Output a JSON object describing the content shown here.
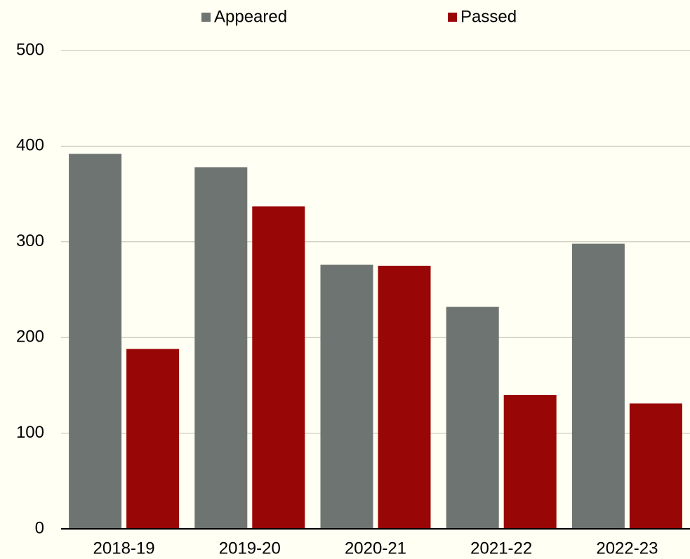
{
  "chart_data": {
    "type": "bar",
    "categories": [
      "2018-19",
      "2019-20",
      "2020-21",
      "2021-22",
      "2022-23"
    ],
    "series": [
      {
        "name": "Appeared",
        "color": "#6e7471",
        "values": [
          392,
          378,
          276,
          232,
          298
        ]
      },
      {
        "name": "Passed",
        "color": "#990606",
        "values": [
          188,
          337,
          275,
          140,
          131
        ]
      }
    ],
    "ylim": [
      0,
      500
    ],
    "yticks": [
      0,
      100,
      200,
      300,
      400,
      500
    ],
    "grid": true,
    "legend": "top"
  }
}
